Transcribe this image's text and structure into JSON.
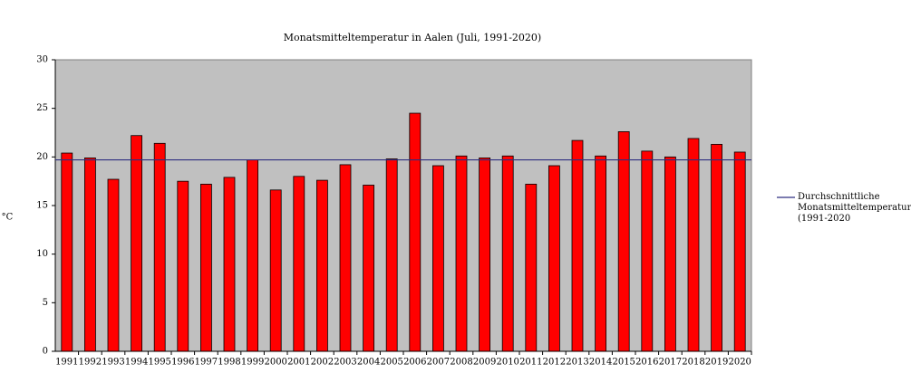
{
  "chart_data": {
    "type": "bar",
    "title": "Monatsmitteltemperatur in Aalen (Juli, 1991-2020)",
    "y_label": "°C",
    "categories": [
      "1991",
      "1992",
      "1993",
      "1994",
      "1995",
      "1996",
      "1997",
      "1998",
      "1999",
      "2000",
      "2001",
      "2002",
      "2003",
      "2004",
      "2005",
      "2006",
      "2007",
      "2008",
      "2009",
      "2010",
      "2011",
      "2012",
      "2013",
      "2014",
      "2015",
      "2016",
      "2017",
      "2018",
      "2019",
      "2020"
    ],
    "values": [
      20.4,
      19.9,
      17.7,
      22.2,
      21.4,
      17.5,
      17.2,
      17.9,
      19.7,
      16.6,
      18.0,
      17.6,
      19.2,
      17.1,
      19.8,
      24.5,
      19.1,
      20.1,
      19.9,
      20.1,
      17.2,
      19.1,
      21.7,
      20.1,
      22.6,
      20.6,
      20.0,
      21.9,
      21.3,
      20.5
    ],
    "color": "#ff0000",
    "ylim": [
      0,
      30
    ],
    "yticks": [
      0,
      5,
      10,
      15,
      20,
      25,
      30
    ],
    "average_line": {
      "name": "Durchschnittliche Monatsmitteltemperatur (1991-2020",
      "value": 19.7,
      "color": "#2e2e80"
    },
    "plot_background": "#c0c0c0"
  }
}
